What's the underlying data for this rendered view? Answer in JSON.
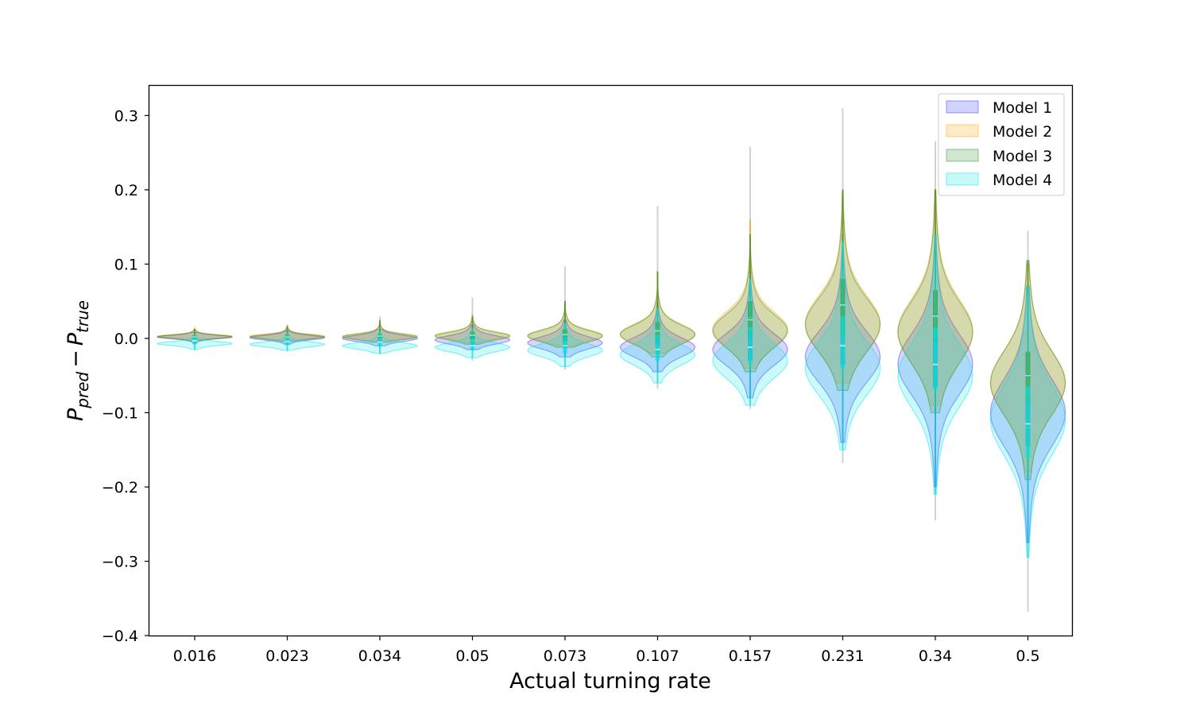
{
  "chart_data": {
    "type": "violin",
    "title": "",
    "xlabel": "Actual turning rate",
    "ylabel_main": "P",
    "ylabel_sub_pred": "pred",
    "ylabel_minus": "−",
    "ylabel_sub_true": "true",
    "categories": [
      "0.016",
      "0.023",
      "0.034",
      "0.05",
      "0.073",
      "0.107",
      "0.157",
      "0.231",
      "0.34",
      "0.5"
    ],
    "ylim": [
      -0.4,
      0.34
    ],
    "yticks": [
      -0.4,
      -0.3,
      -0.2,
      -0.1,
      0.0,
      0.1,
      0.2,
      0.3
    ],
    "ytick_labels": [
      "−0.4",
      "−0.3",
      "−0.2",
      "−0.1",
      "0.0",
      "0.1",
      "0.2",
      "0.3"
    ],
    "grid": false,
    "legend_position": "top-right",
    "series": [
      {
        "name": "Model 1",
        "color": "#3333ff",
        "median": [
          0.001,
          0.0,
          0.0,
          -0.003,
          -0.006,
          -0.012,
          -0.012,
          -0.008,
          -0.035,
          -0.12
        ],
        "q1": [
          -0.002,
          -0.003,
          -0.004,
          -0.008,
          -0.012,
          -0.02,
          -0.03,
          -0.035,
          -0.065,
          -0.145
        ],
        "q3": [
          0.003,
          0.003,
          0.004,
          0.005,
          0.003,
          0.005,
          0.01,
          0.02,
          0.0,
          -0.08
        ],
        "min": [
          -0.007,
          -0.008,
          -0.01,
          -0.015,
          -0.025,
          -0.045,
          -0.08,
          -0.14,
          -0.2,
          -0.275
        ],
        "max": [
          0.008,
          0.01,
          0.012,
          0.018,
          0.025,
          0.05,
          0.09,
          0.14,
          0.14,
          0.07
        ],
        "mode": [
          0.002,
          0.001,
          0.0,
          -0.002,
          -0.006,
          -0.012,
          -0.015,
          -0.025,
          -0.035,
          -0.1
        ],
        "spread": [
          0.0022,
          0.0028,
          0.0038,
          0.0052,
          0.0075,
          0.012,
          0.02,
          0.032,
          0.038,
          0.042
        ]
      },
      {
        "name": "Model 2",
        "color": "#ffa500",
        "median": [
          0.003,
          0.003,
          0.004,
          0.005,
          0.006,
          0.012,
          0.028,
          0.045,
          0.03,
          -0.05
        ],
        "q1": [
          0.001,
          0.001,
          0.001,
          0.0,
          -0.002,
          0.0,
          0.005,
          0.01,
          0.0,
          -0.085
        ],
        "q3": [
          0.005,
          0.006,
          0.007,
          0.01,
          0.014,
          0.025,
          0.05,
          0.08,
          0.065,
          -0.02
        ],
        "min": [
          -0.002,
          -0.003,
          -0.004,
          -0.006,
          -0.01,
          -0.02,
          -0.04,
          -0.06,
          -0.09,
          -0.18
        ],
        "max": [
          0.013,
          0.017,
          0.025,
          0.032,
          0.05,
          0.09,
          0.16,
          0.2,
          0.2,
          0.1
        ],
        "mode": [
          0.003,
          0.003,
          0.003,
          0.004,
          0.004,
          0.006,
          0.012,
          0.02,
          0.01,
          -0.06
        ],
        "spread": [
          0.002,
          0.0025,
          0.0032,
          0.0045,
          0.007,
          0.012,
          0.022,
          0.035,
          0.04,
          0.04
        ]
      },
      {
        "name": "Model 3",
        "color": "#2e8b2e",
        "median": [
          0.002,
          0.002,
          0.003,
          0.004,
          0.005,
          0.01,
          0.025,
          0.045,
          0.03,
          -0.05
        ],
        "q1": [
          0.0,
          0.0,
          0.0,
          -0.001,
          -0.003,
          -0.005,
          0.0,
          0.005,
          -0.005,
          -0.085
        ],
        "q3": [
          0.004,
          0.005,
          0.006,
          0.009,
          0.012,
          0.022,
          0.05,
          0.08,
          0.065,
          -0.018
        ],
        "min": [
          -0.003,
          -0.004,
          -0.005,
          -0.008,
          -0.012,
          -0.025,
          -0.045,
          -0.07,
          -0.1,
          -0.19
        ],
        "max": [
          0.012,
          0.016,
          0.024,
          0.03,
          0.05,
          0.09,
          0.14,
          0.2,
          0.2,
          0.105
        ],
        "mode": [
          0.002,
          0.002,
          0.002,
          0.003,
          0.003,
          0.005,
          0.01,
          0.018,
          0.008,
          -0.06
        ],
        "spread": [
          0.0021,
          0.0026,
          0.0034,
          0.0048,
          0.0072,
          0.012,
          0.021,
          0.034,
          0.039,
          0.04
        ]
      },
      {
        "name": "Model 4",
        "color": "#00e5e5",
        "median": [
          -0.003,
          -0.004,
          -0.005,
          -0.01,
          -0.01,
          -0.015,
          -0.012,
          -0.01,
          -0.035,
          -0.115
        ],
        "q1": [
          -0.008,
          -0.009,
          -0.011,
          -0.016,
          -0.02,
          -0.03,
          -0.035,
          -0.04,
          -0.07,
          -0.16
        ],
        "q3": [
          0.001,
          0.001,
          0.0,
          0.0,
          0.002,
          0.005,
          0.015,
          0.03,
          0.015,
          -0.065
        ],
        "min": [
          -0.015,
          -0.016,
          -0.02,
          -0.026,
          -0.038,
          -0.06,
          -0.09,
          -0.15,
          -0.21,
          -0.295
        ],
        "max": [
          0.005,
          0.007,
          0.01,
          0.013,
          0.02,
          0.04,
          0.08,
          0.13,
          0.14,
          0.07
        ],
        "mode": [
          -0.007,
          -0.008,
          -0.01,
          -0.012,
          -0.016,
          -0.022,
          -0.03,
          -0.04,
          -0.05,
          -0.11
        ],
        "spread": [
          0.0025,
          0.0031,
          0.004,
          0.0055,
          0.008,
          0.013,
          0.022,
          0.034,
          0.04,
          0.044
        ]
      }
    ],
    "outlier_extents": {
      "max": [
        0.015,
        0.019,
        0.03,
        0.055,
        0.097,
        0.178,
        0.258,
        0.31,
        0.265,
        0.145
      ],
      "min": [
        -0.016,
        -0.018,
        -0.022,
        -0.03,
        -0.042,
        -0.068,
        -0.095,
        -0.168,
        -0.245,
        -0.368
      ]
    }
  }
}
